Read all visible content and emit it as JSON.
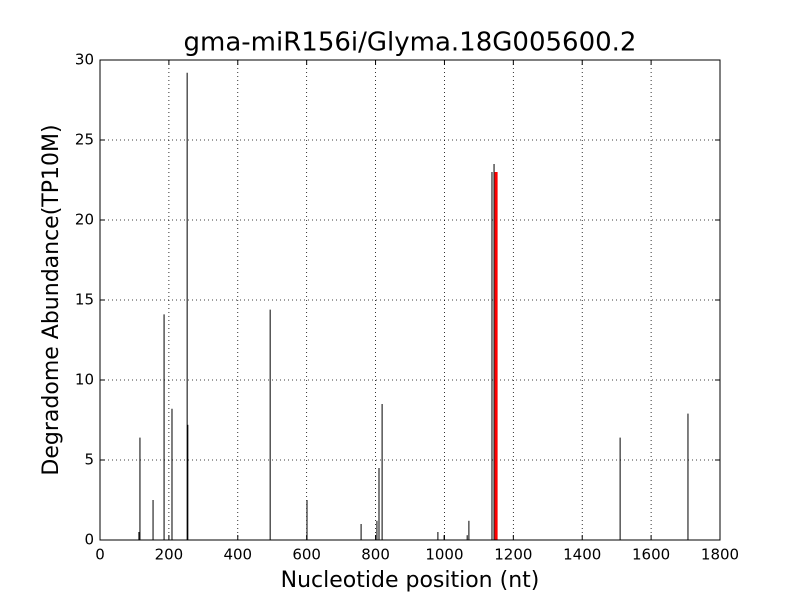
{
  "chart_data": {
    "type": "stem",
    "title": "gma-miR156i/Glyma.18G005600.2",
    "x_label": "Nucleotide position (nt)",
    "y_label": "Degradome Abundance(TP10M)",
    "series": [
      {
        "color": "#000000",
        "linewidth": 1,
        "x": [
          113,
          116,
          154,
          186,
          209,
          253,
          255,
          494,
          601,
          758,
          804,
          810,
          819,
          981,
          999,
          1066,
          1071,
          1138,
          1144,
          1510,
          1707
        ],
        "values": [
          0.5,
          6.4,
          2.5,
          14.1,
          8.2,
          29.2,
          7.2,
          14.4,
          2.5,
          1.0,
          1.2,
          4.5,
          8.5,
          0.5,
          0.3,
          0.3,
          1.2,
          23.0,
          23.5,
          6.4,
          7.9
        ]
      },
      {
        "color": "#ff0000",
        "linewidth": 3,
        "x": [
          1150
        ],
        "values": [
          23.0
        ]
      }
    ],
    "xlim": [
      0,
      1800
    ],
    "xticks": [
      0,
      200,
      400,
      600,
      800,
      1000,
      1200,
      1400,
      1600,
      1800
    ],
    "ylim": [
      0,
      30
    ],
    "yticks": [
      0,
      5,
      10,
      15,
      20,
      25,
      30
    ],
    "grid": true
  }
}
